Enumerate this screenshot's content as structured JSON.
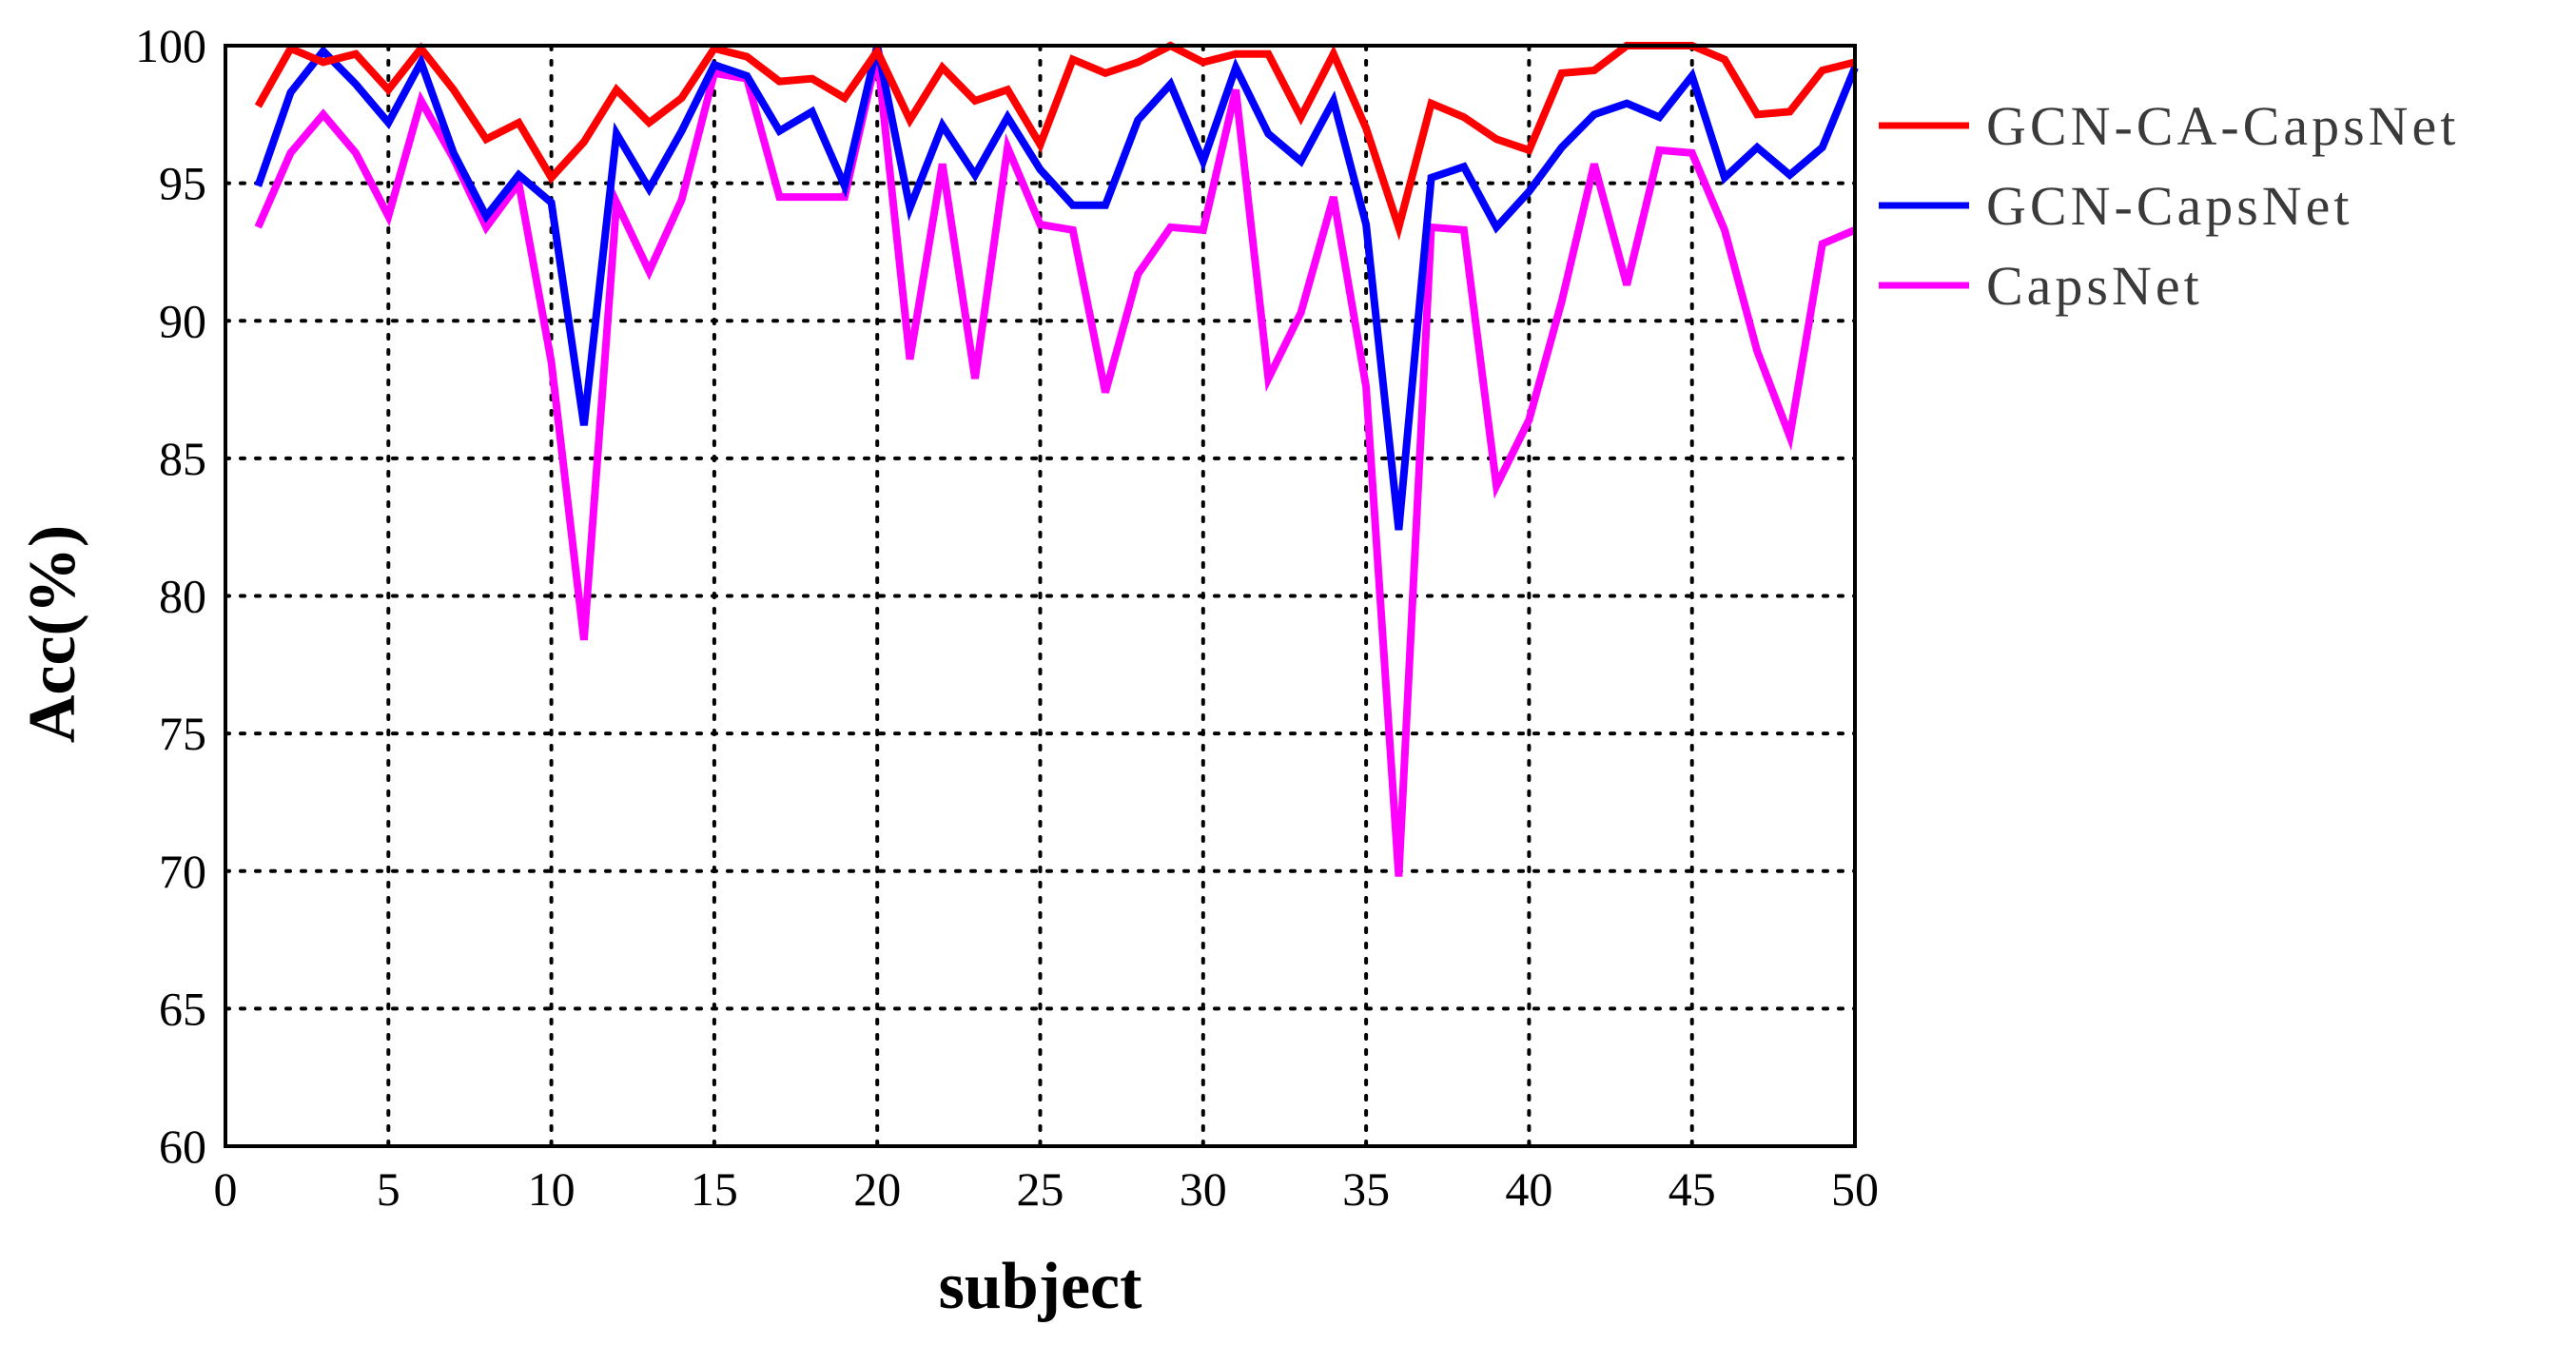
{
  "chart_data": {
    "type": "line",
    "title": "",
    "xlabel": "subject",
    "ylabel": "Acc(%)",
    "xlim": [
      0,
      50
    ],
    "ylim": [
      60,
      100
    ],
    "xticks": [
      0,
      5,
      10,
      15,
      20,
      25,
      30,
      35,
      40,
      45,
      50
    ],
    "yticks": [
      60,
      65,
      70,
      75,
      80,
      85,
      90,
      95,
      100
    ],
    "grid": true,
    "legend_position": "outside-right-top",
    "x": [
      1,
      2,
      3,
      4,
      5,
      6,
      7,
      8,
      9,
      10,
      11,
      12,
      13,
      14,
      15,
      16,
      17,
      18,
      19,
      20,
      21,
      22,
      23,
      24,
      25,
      26,
      27,
      28,
      29,
      30,
      31,
      32,
      33,
      34,
      35,
      36,
      37,
      38,
      39,
      40,
      41,
      42,
      43,
      44,
      45,
      46,
      47,
      48,
      49,
      50
    ],
    "series": [
      {
        "name": "GCN-CA-CapsNet",
        "color": "#ff0000",
        "values": [
          97.8,
          99.9,
          99.4,
          99.7,
          98.4,
          99.9,
          98.4,
          96.6,
          97.2,
          95.2,
          96.5,
          98.4,
          97.2,
          98.1,
          99.9,
          99.6,
          98.7,
          98.8,
          98.1,
          99.8,
          97.3,
          99.2,
          98.0,
          98.4,
          96.4,
          99.5,
          99.0,
          99.4,
          100.0,
          99.4,
          99.7,
          99.7,
          97.4,
          99.7,
          97.0,
          93.4,
          97.9,
          97.4,
          96.6,
          96.2,
          99.0,
          99.1,
          100.0,
          100.0,
          100.0,
          99.5,
          97.5,
          97.6,
          99.1,
          99.4
        ]
      },
      {
        "name": "GCN-CapsNet",
        "color": "#0000ff",
        "values": [
          94.9,
          98.3,
          99.8,
          98.6,
          97.2,
          99.4,
          96.1,
          93.8,
          95.3,
          94.3,
          86.2,
          96.8,
          94.8,
          96.9,
          99.3,
          98.9,
          96.9,
          97.6,
          94.9,
          100.0,
          94.1,
          97.1,
          95.3,
          97.4,
          95.5,
          94.2,
          94.2,
          97.3,
          98.6,
          95.8,
          99.2,
          96.8,
          95.8,
          98.0,
          93.5,
          82.4,
          95.2,
          95.6,
          93.4,
          94.7,
          96.3,
          97.5,
          97.9,
          97.4,
          98.9,
          95.2,
          96.3,
          95.3,
          96.3,
          99.2
        ]
      },
      {
        "name": "CapsNet",
        "color": "#ff00ff",
        "values": [
          93.4,
          96.1,
          97.5,
          96.1,
          93.8,
          98.0,
          95.9,
          93.4,
          95.0,
          88.5,
          78.4,
          94.3,
          91.8,
          94.4,
          99.0,
          98.8,
          94.5,
          94.5,
          94.5,
          99.7,
          88.6,
          95.7,
          87.9,
          96.3,
          93.5,
          93.3,
          87.4,
          91.7,
          93.4,
          93.3,
          98.4,
          87.9,
          90.3,
          94.5,
          87.6,
          69.8,
          93.4,
          93.3,
          84.0,
          86.4,
          90.7,
          95.7,
          91.3,
          96.2,
          96.1,
          93.3,
          88.9,
          85.8,
          92.8,
          93.3
        ]
      }
    ]
  }
}
